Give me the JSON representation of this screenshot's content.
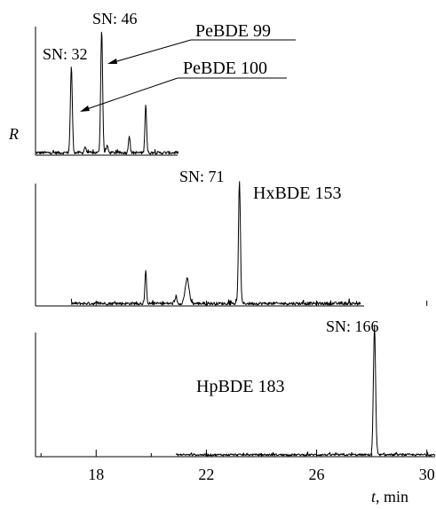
{
  "chart_data": {
    "type": "line",
    "title": "",
    "xlabel_symbol": "t",
    "xlabel_unit": ", min",
    "ylabel": "R",
    "xlim": [
      15.8,
      30.3
    ],
    "xticks": [
      18,
      22,
      26,
      30
    ],
    "grid": false,
    "legend": "none",
    "panels": [
      {
        "name": "PeBDE",
        "ylim": [
          0,
          100
        ],
        "x_range": [
          15.8,
          21.0
        ],
        "baseline": 2,
        "noise": 1.2,
        "peaks": [
          {
            "x": 17.1,
            "height": 70,
            "width": 0.035
          },
          {
            "x": 18.2,
            "height": 100,
            "width": 0.035
          },
          {
            "x": 17.6,
            "height": 5,
            "width": 0.03
          },
          {
            "x": 18.4,
            "height": 6,
            "width": 0.03
          },
          {
            "x": 19.2,
            "height": 14,
            "width": 0.03
          },
          {
            "x": 19.8,
            "height": 40,
            "width": 0.03
          }
        ],
        "labels": [
          {
            "text": "SN: 46",
            "x": 18.2
          },
          {
            "text": "SN: 32",
            "x": 17.1
          }
        ],
        "compounds": [
          {
            "text": "PeBDE 99",
            "target_x": 18.2
          },
          {
            "text": "PeBDE 100",
            "target_x": 17.1
          }
        ]
      },
      {
        "name": "HxBDE",
        "ylim": [
          0,
          100
        ],
        "x_range": [
          17.1,
          27.6
        ],
        "baseline": 2,
        "noise": 1.2,
        "peaks": [
          {
            "x": 19.8,
            "height": 26,
            "width": 0.03
          },
          {
            "x": 20.9,
            "height": 6,
            "width": 0.03
          },
          {
            "x": 21.3,
            "height": 20,
            "width": 0.07
          },
          {
            "x": 23.2,
            "height": 100,
            "width": 0.035
          }
        ],
        "labels": [
          {
            "text": "SN: 71",
            "x": 23.2
          }
        ],
        "compounds": [
          {
            "text": "HxBDE 153"
          }
        ]
      },
      {
        "name": "HpBDE",
        "ylim": [
          0,
          100
        ],
        "x_range": [
          20.9,
          30.3
        ],
        "baseline": 1.5,
        "noise": 0.8,
        "peaks": [
          {
            "x": 28.1,
            "height": 100,
            "width": 0.04
          }
        ],
        "labels": [
          {
            "text": "SN: 166",
            "x": 28.1
          }
        ],
        "compounds": [
          {
            "text": "HpBDE 183"
          }
        ]
      }
    ]
  }
}
